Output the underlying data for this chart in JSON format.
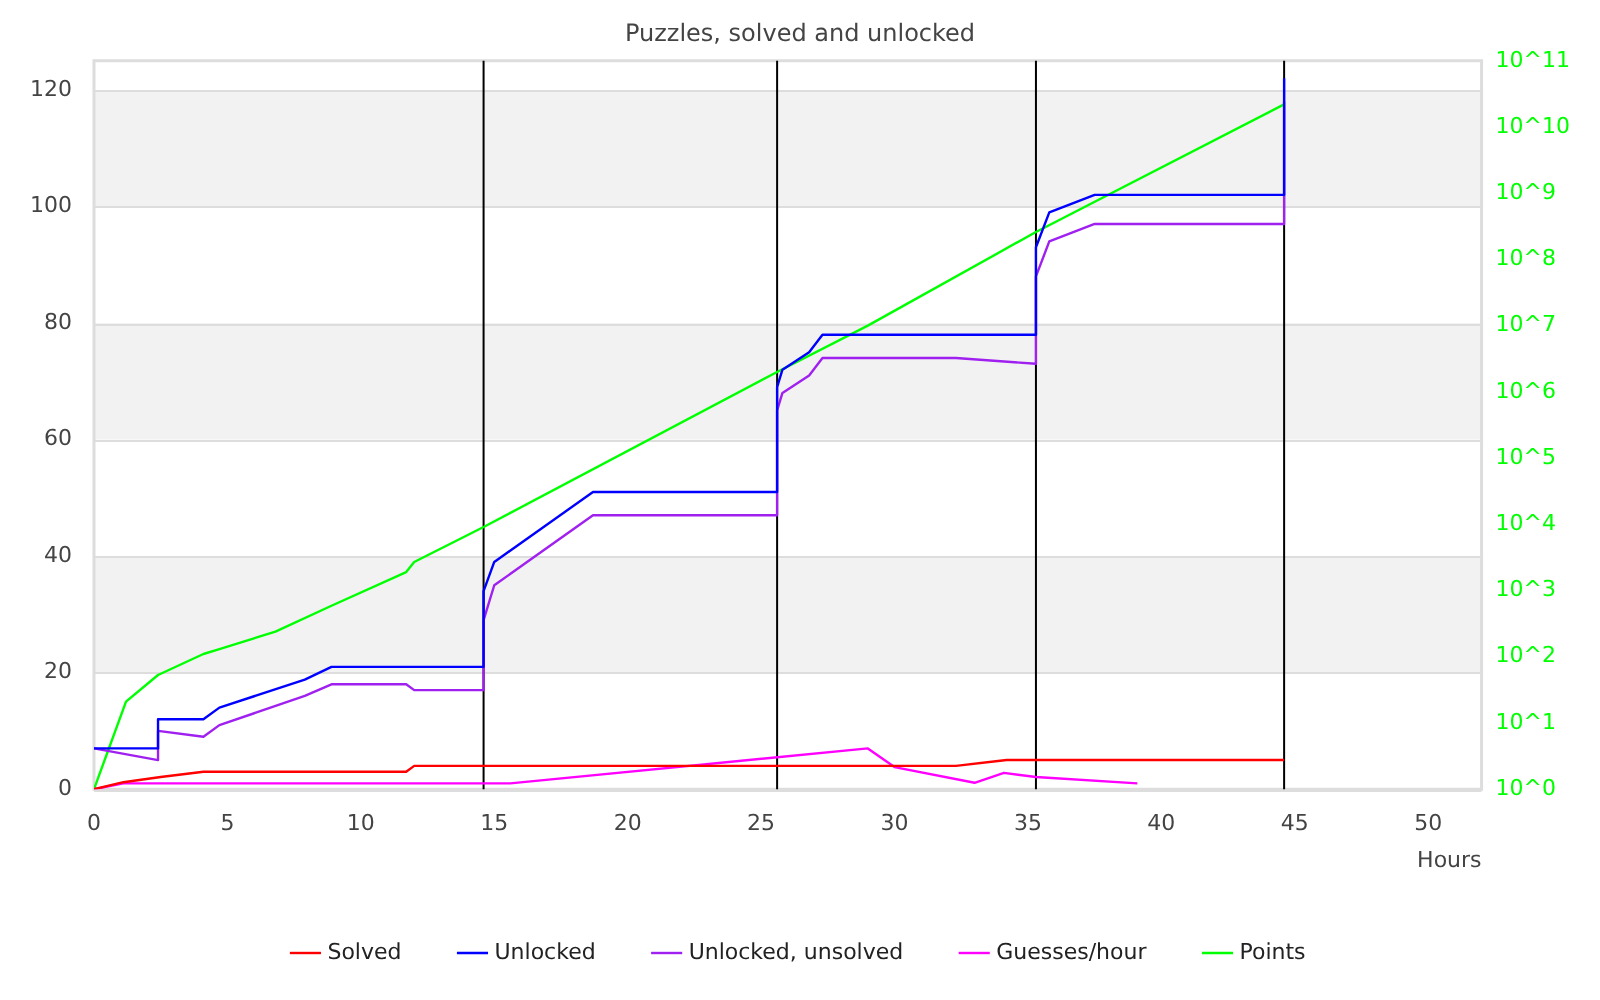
{
  "chart_data": {
    "type": "line",
    "title": "Puzzles, solved and unlocked",
    "xlabel": "Hours",
    "xlim": [
      0,
      52
    ],
    "xticks": [
      0,
      5,
      10,
      15,
      20,
      25,
      30,
      35,
      40,
      45,
      50
    ],
    "ylim": [
      0,
      125
    ],
    "yticks": [
      0,
      20,
      40,
      60,
      80,
      100,
      120
    ],
    "log": "y2",
    "y2lim": [
      1,
      100000000000
    ],
    "y2ticks": [
      {
        "value": 1,
        "label": "10^0"
      },
      {
        "value": 10,
        "label": "10^1"
      },
      {
        "value": 100,
        "label": "10^2"
      },
      {
        "value": 1000,
        "label": "10^3"
      },
      {
        "value": 10000,
        "label": "10^4"
      },
      {
        "value": 100000,
        "label": "10^5"
      },
      {
        "value": 1000000,
        "label": "10^6"
      },
      {
        "value": 10000000,
        "label": "10^7"
      },
      {
        "value": 100000000,
        "label": "10^8"
      },
      {
        "value": 1000000000,
        "label": "10^9"
      },
      {
        "value": 10000000000,
        "label": "10^10"
      },
      {
        "value": 100000000000,
        "label": "10^11"
      }
    ],
    "grid": "y",
    "legend": "bottom",
    "marker": "none",
    "line_style": "solid",
    "series": [
      {
        "name": "Solved",
        "color": "#ff0000",
        "x": [
          0,
          1.1,
          2.5,
          4.1,
          11.7,
          12,
          32.3,
          34.2,
          44.6
        ],
        "values": [
          0,
          1.2,
          2.1,
          3,
          3,
          4,
          4,
          5,
          5
        ]
      },
      {
        "name": "Unlocked",
        "color": "#0000ff",
        "x": [
          0,
          2.4,
          2.4,
          4.1,
          4.7,
          7.9,
          8.9,
          14.6,
          14.6,
          15,
          18.7,
          25.6,
          25.6,
          25.8,
          26.8,
          27.3,
          35.3,
          35.3,
          35.8,
          37.5,
          44.6,
          44.6
        ],
        "values": [
          7,
          7,
          12,
          12,
          14,
          18.8,
          21,
          21,
          34,
          39,
          51,
          51,
          69,
          72,
          75,
          78,
          78,
          93,
          99,
          102,
          102,
          122
        ]
      },
      {
        "name": "Unlocked, unsolved",
        "color": "#a020f0",
        "x": [
          0,
          2.4,
          2.4,
          4.1,
          4.7,
          7.9,
          8.9,
          11.7,
          12,
          14.6,
          14.6,
          15,
          18.7,
          25.6,
          25.6,
          25.8,
          26.8,
          27.3,
          32.3,
          35.3,
          35.3,
          35.8,
          37.5,
          44.6,
          44.6
        ],
        "values": [
          7,
          5,
          10,
          9,
          11,
          16,
          18,
          18,
          17,
          17,
          29,
          35,
          47,
          47,
          65,
          68,
          71,
          74,
          74,
          73,
          88,
          94,
          97,
          97,
          118
        ]
      },
      {
        "name": "Guesses/hour",
        "color": "#ff00ff",
        "x": [
          0,
          1.1,
          15.6,
          29,
          30,
          33,
          34.1,
          35.3,
          39.1
        ],
        "values": [
          0,
          1,
          1,
          7,
          3.8,
          1.1,
          2.8,
          2.1,
          1
        ]
      },
      {
        "name": "Points",
        "color": "#00ff00",
        "axis": "y2",
        "x": [
          0,
          1.2,
          2.4,
          4.1,
          4.7,
          6.8,
          8.9,
          11.7,
          12,
          14.6,
          25.6,
          29,
          35.3,
          44.6
        ],
        "values": [
          1,
          21,
          53,
          110,
          130,
          240,
          590,
          1900,
          2700,
          9100,
          2000000,
          10000000,
          260000000,
          22000000000
        ]
      }
    ],
    "ref_lines": [
      {
        "axis": "x",
        "value": 14.6,
        "color": "#000000"
      },
      {
        "axis": "x",
        "value": 25.6,
        "color": "#000000"
      },
      {
        "axis": "x",
        "value": 35.3,
        "color": "#000000"
      },
      {
        "axis": "x",
        "value": 44.6,
        "color": "#000000"
      }
    ]
  }
}
